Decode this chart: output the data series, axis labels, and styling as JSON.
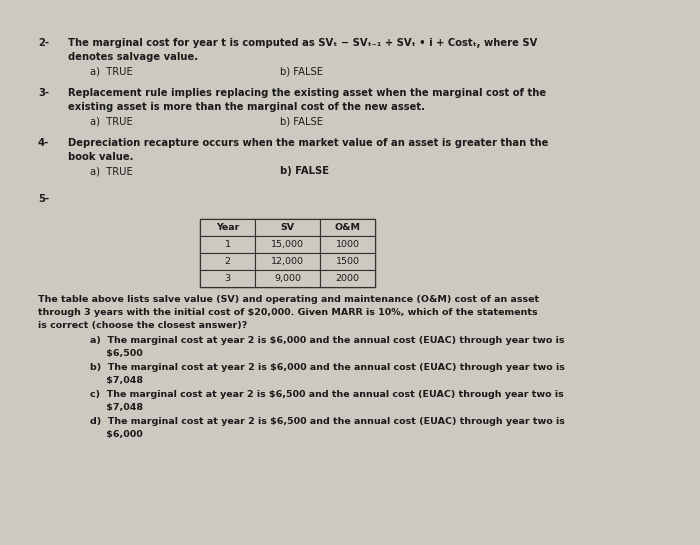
{
  "bg_color": "#cdc9c1",
  "text_color": "#1a1a1a",
  "font_size": 7.2,
  "font_size_sm": 6.8,
  "font_family": "DejaVu Sans",
  "q2_num": "2-",
  "q2_l1": "The marginal cost for year t is computed as SVₜ − SVₜ₋₁ + SVₜ • i + Costₜ, where SV",
  "q2_l2": "denotes salvage value.",
  "q2_a": "a)  TRUE",
  "q2_b": "b) FALSE",
  "q3_num": "3-",
  "q3_l1": "Replacement rule implies replacing the existing asset when the marginal cost of the",
  "q3_l2": "existing asset is more than the marginal cost of the new asset.",
  "q3_a": "a)  TRUE",
  "q3_b": "b) FALSE",
  "q4_num": "4-",
  "q4_l1": "Depreciation recapture occurs when the market value of an asset is greater than the",
  "q4_l2": "book value.",
  "q4_a": "a)  TRUE",
  "q4_b": "b) FALSE",
  "q5_num": "5-",
  "tbl_headers": [
    "Year",
    "SV",
    "O&M"
  ],
  "tbl_rows": [
    [
      "1",
      "15,000",
      "1000"
    ],
    [
      "2",
      "12,000",
      "1500"
    ],
    [
      "3",
      "9,000",
      "2000"
    ]
  ],
  "q5_d1": "The table above lists salve value (SV) and operating and maintenance (O&M) cost of an asset",
  "q5_d2": "through 3 years with the initial cost of $20,000. Given MARR is 10%, which of the statements",
  "q5_d3": "is correct (choose the closest answer)?",
  "q5_a1": "a)  The marginal cost at year 2 is $6,000 and the annual cost (EUAC) through year two is",
  "q5_a2": "     $6,500",
  "q5_b1": "b)  The marginal cost at year 2 is $6,000 and the annual cost (EUAC) through year two is",
  "q5_b2": "     $7,048",
  "q5_c1": "c)  The marginal cost at year 2 is $6,500 and the annual cost (EUAC) through year two is",
  "q5_c2": "     $7,048",
  "q5_d1b": "d)  The marginal cost at year 2 is $6,500 and the annual cost (EUAC) through year two is",
  "q5_d2b": "     $6,000"
}
